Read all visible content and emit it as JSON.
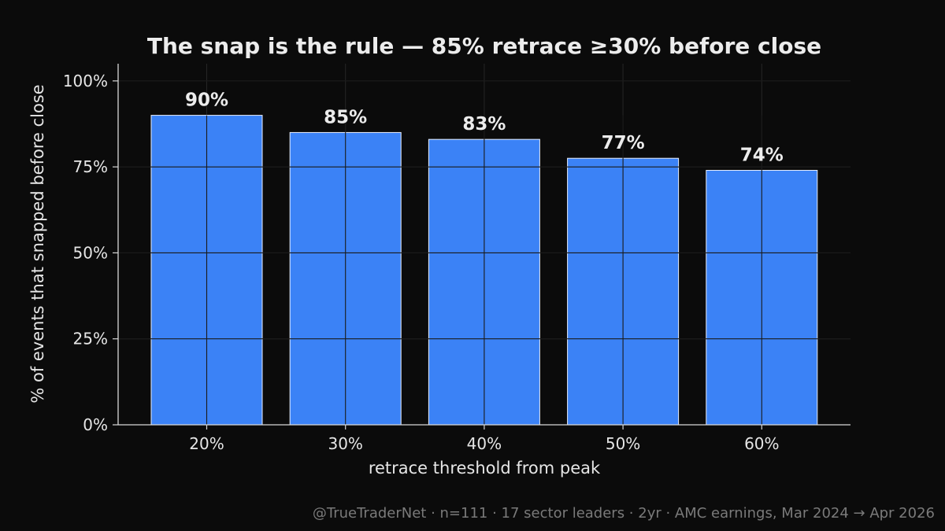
{
  "chart_data": {
    "type": "bar",
    "title": "The snap is the rule — 85% retrace ≥30% before close",
    "xlabel": "retrace threshold from peak",
    "ylabel": "% of events that snapped before close",
    "categories": [
      "20%",
      "30%",
      "40%",
      "50%",
      "60%"
    ],
    "values": [
      90,
      85,
      83,
      77.5,
      74
    ],
    "value_labels": [
      "90%",
      "85%",
      "83%",
      "77%",
      "74%"
    ],
    "ylim": [
      0,
      105
    ],
    "yticks": [
      0,
      25,
      50,
      75,
      100
    ],
    "ytick_labels": [
      "0%",
      "25%",
      "50%",
      "75%",
      "100%"
    ],
    "grid": true,
    "bar_color": "#3b82f6",
    "bar_edge_color": "#e8eefc",
    "background_color": "#0b0b0b"
  },
  "footer": "@TrueTraderNet  ·  n=111  ·  17 sector leaders  ·  2yr  ·  AMC earnings, Mar 2024 → Apr 2026"
}
